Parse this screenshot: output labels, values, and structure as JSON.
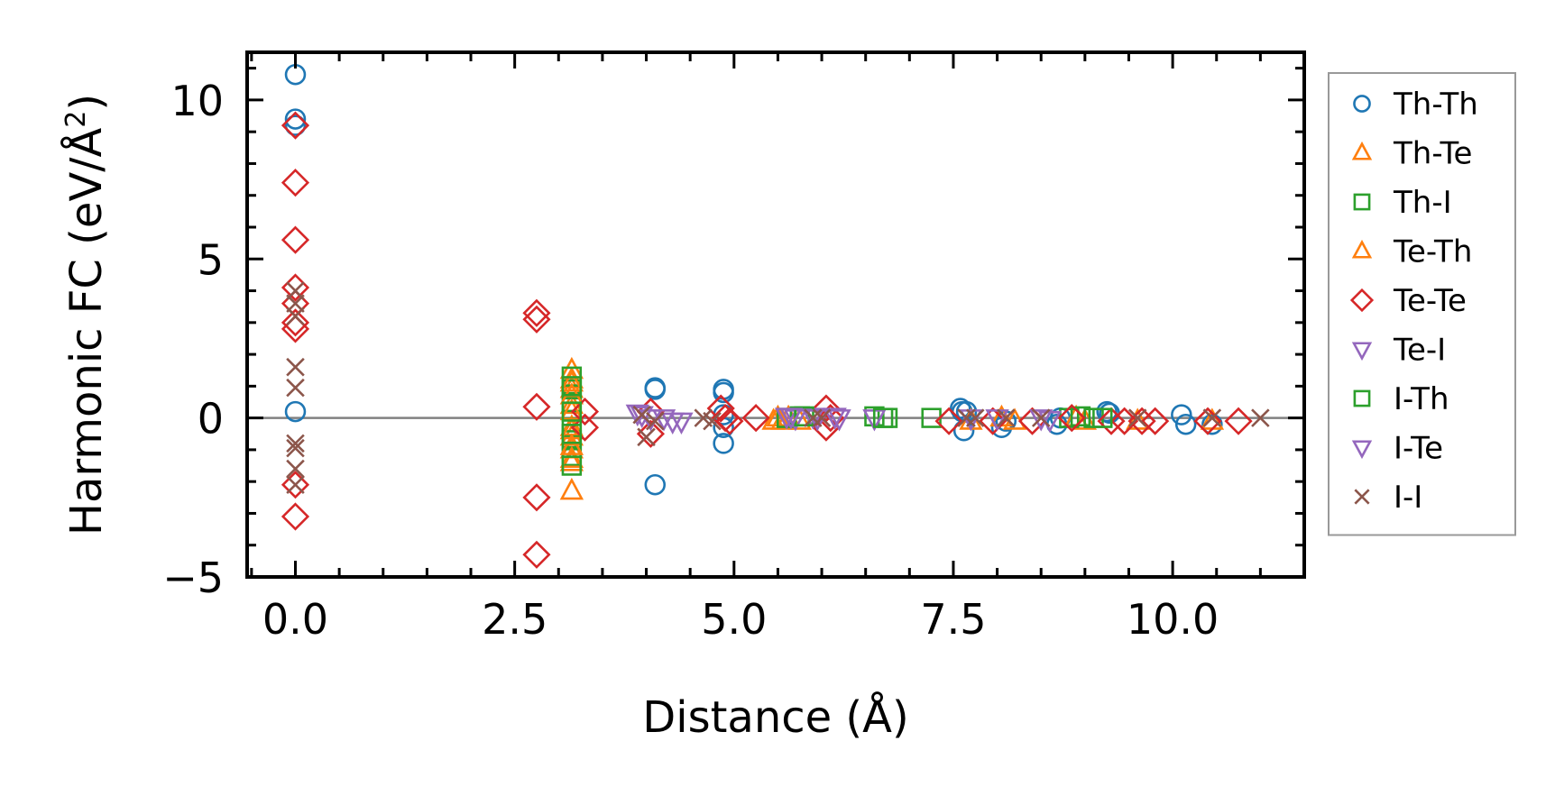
{
  "chart_data": {
    "type": "scatter",
    "title": "",
    "xlabel": "Distance (Å)",
    "ylabel": "Harmonic FC (eV/Å²)",
    "ylabel_base": "Harmonic FC (eV/Å",
    "ylabel_sup": "2",
    "ylabel_close": ")",
    "xlim": [
      -0.55,
      11.5
    ],
    "ylim": [
      -5,
      11.5
    ],
    "xticks": [
      0.0,
      2.5,
      5.0,
      7.5,
      10.0
    ],
    "xtick_labels": [
      "0.0",
      "2.5",
      "5.0",
      "7.5",
      "10.0"
    ],
    "yticks": [
      -5,
      0,
      5,
      10
    ],
    "ytick_labels": [
      "−5",
      "0",
      "5",
      "10"
    ],
    "x_minor_step": 0.5,
    "y_minor_step": 1,
    "zero_line": 0,
    "grid": false,
    "legend_position": "outside-right",
    "series": [
      {
        "name": "Th-Th",
        "marker": "circle",
        "color": "#1f77b4",
        "x": [
          0,
          0,
          0,
          0,
          4.1,
          4.1,
          4.1,
          4.88,
          4.88,
          4.88,
          4.88,
          4.88,
          7.58,
          7.6,
          7.62,
          7.65,
          8.05,
          8.1,
          8.68,
          8.72,
          9.25,
          9.28,
          10.1,
          10.15,
          10.45
        ],
        "y": [
          10.8,
          9.4,
          9.2,
          0.2,
          0.95,
          0.9,
          -2.1,
          0.9,
          0.8,
          0.1,
          -0.3,
          -0.8,
          0.3,
          0.2,
          -0.4,
          0.2,
          -0.3,
          -0.1,
          -0.2,
          0.0,
          0.2,
          0.15,
          0.1,
          -0.2,
          -0.2
        ]
      },
      {
        "name": "Th-Te",
        "marker": "triangle-up",
        "color": "#ff7f0e",
        "x": [
          3.15,
          3.15,
          3.15,
          3.15,
          3.15,
          3.15,
          3.15,
          3.15,
          3.15,
          5.45,
          5.5,
          5.55,
          5.62,
          5.75,
          7.7,
          8.05,
          8.2,
          8.9,
          9.0,
          9.6,
          10.45
        ],
        "y": [
          1.5,
          1.2,
          0.9,
          0.4,
          -0.3,
          -0.6,
          -1.0,
          -1.4,
          -2.3,
          -0.1,
          0.0,
          -0.1,
          0.0,
          -0.1,
          -0.1,
          0.0,
          -0.1,
          0.0,
          -0.1,
          -0.1,
          -0.1
        ]
      },
      {
        "name": "Th-I",
        "marker": "square",
        "color": "#2ca02c",
        "x": [
          3.15,
          3.15,
          3.15,
          3.15,
          3.15,
          3.15,
          5.6,
          5.75,
          6.6,
          6.75,
          7.25,
          8.82,
          8.95,
          9.1
        ],
        "y": [
          1.3,
          0.9,
          0.5,
          -0.3,
          -0.7,
          -1.2,
          0.0,
          0.05,
          0.05,
          0.0,
          0.0,
          0.0,
          0.05,
          0.0
        ]
      },
      {
        "name": "Te-Th",
        "marker": "triangle-up",
        "color": "#ff7f0e",
        "x": [
          3.15,
          3.15,
          3.15,
          3.15,
          3.15,
          3.15
        ],
        "y": [
          1.1,
          0.7,
          0.2,
          -0.4,
          -0.9,
          -1.3
        ]
      },
      {
        "name": "Te-Te",
        "marker": "diamond",
        "color": "#d62728",
        "x": [
          0,
          0,
          0,
          0,
          0,
          0,
          0,
          0,
          0,
          2.75,
          2.75,
          2.75,
          2.75,
          2.75,
          3.3,
          3.3,
          4.05,
          4.05,
          4.85,
          4.9,
          4.95,
          5.25,
          6.05,
          6.05,
          6.1,
          7.45,
          7.95,
          8.4,
          8.85,
          9.3,
          9.45,
          9.65,
          9.8,
          10.4,
          10.75
        ],
        "y": [
          9.2,
          7.4,
          5.6,
          4.1,
          3.0,
          2.8,
          -2.1,
          -3.1,
          3.6,
          3.3,
          3.1,
          0.35,
          -2.5,
          -4.3,
          0.2,
          -0.3,
          0.2,
          -0.5,
          0.3,
          0.0,
          -0.1,
          0.0,
          0.3,
          -0.3,
          0.0,
          -0.1,
          -0.1,
          -0.1,
          0.0,
          -0.1,
          -0.1,
          -0.1,
          -0.1,
          -0.1,
          -0.1
        ]
      },
      {
        "name": "Te-I",
        "marker": "triangle-down",
        "color": "#9467bd",
        "x": [
          3.9,
          4.2,
          4.4,
          5.6,
          5.7,
          5.9,
          6.2,
          6.6,
          8.5,
          8.6
        ],
        "y": [
          0.15,
          0.0,
          -0.1,
          0.05,
          0.0,
          0.05,
          0.0,
          0.0,
          0.0,
          -0.05
        ]
      },
      {
        "name": "I-Th",
        "marker": "square",
        "color": "#2ca02c",
        "x": [
          3.15,
          3.15,
          3.15,
          3.15,
          5.8,
          6.7,
          9.2
        ],
        "y": [
          1.0,
          0.2,
          -0.5,
          -1.5,
          0.05,
          0.0,
          0.0
        ]
      },
      {
        "name": "I-Te",
        "marker": "triangle-down",
        "color": "#9467bd",
        "x": [
          3.95,
          4.05,
          4.3,
          5.65,
          5.95,
          6.15,
          7.7,
          8.0
        ],
        "y": [
          0.1,
          0.0,
          -0.1,
          0.05,
          0.0,
          0.05,
          0.0,
          0.0
        ]
      },
      {
        "name": "I-I",
        "marker": "x",
        "color": "#8c564b",
        "x": [
          0,
          0,
          0,
          0,
          0,
          0,
          0,
          0,
          0,
          3.95,
          4.0,
          4.1,
          4.65,
          4.75,
          5.9,
          6.0,
          7.65,
          7.75,
          8.1,
          8.5,
          9.6,
          10.45,
          11.0
        ],
        "y": [
          4.0,
          3.6,
          3.2,
          1.6,
          0.95,
          -0.8,
          -0.95,
          -1.6,
          -2.1,
          0.1,
          -0.6,
          -0.1,
          0.0,
          -0.1,
          0.0,
          0.0,
          0.0,
          0.0,
          0.0,
          0.0,
          0.0,
          0.0,
          0.0
        ]
      }
    ]
  }
}
